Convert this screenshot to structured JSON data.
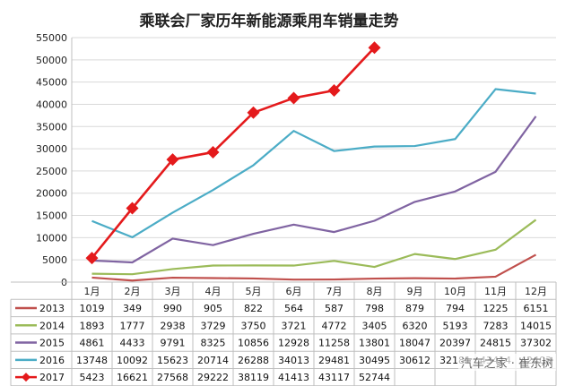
{
  "watermark": "汽车之家 · 崔东树",
  "chart_data": {
    "type": "line",
    "title": "乘联会厂家历年新能源乘用车销量走势",
    "categories": [
      "1月",
      "2月",
      "3月",
      "4月",
      "5月",
      "6月",
      "7月",
      "8月",
      "9月",
      "10月",
      "11月",
      "12月"
    ],
    "ylim": [
      0,
      55000
    ],
    "yticks": [
      0,
      5000,
      10000,
      15000,
      20000,
      25000,
      30000,
      35000,
      40000,
      45000,
      50000,
      55000
    ],
    "grid": true,
    "legend": "data table below plot",
    "series": [
      {
        "name": "2013",
        "color": "#c0504d",
        "marker": "none",
        "values": [
          1019,
          349,
          990,
          905,
          822,
          564,
          587,
          798,
          879,
          794,
          1225,
          6151
        ]
      },
      {
        "name": "2014",
        "color": "#9bbb59",
        "marker": "none",
        "values": [
          1893,
          1777,
          2938,
          3729,
          3750,
          3721,
          4772,
          3405,
          6320,
          5193,
          7283,
          14015
        ]
      },
      {
        "name": "2015",
        "color": "#8064a2",
        "marker": "none",
        "values": [
          4861,
          4433,
          9791,
          8325,
          10856,
          12928,
          11258,
          13801,
          18047,
          20397,
          24815,
          37302
        ]
      },
      {
        "name": "2016",
        "color": "#4bacc6",
        "marker": "none",
        "values": [
          13748,
          10092,
          15623,
          20714,
          26288,
          34013,
          29481,
          30495,
          30612,
          32181,
          43414,
          42403
        ]
      },
      {
        "name": "2017",
        "color": "#e41a1c",
        "marker": "diamond",
        "values": [
          5423,
          16621,
          27568,
          29222,
          38119,
          41413,
          43117,
          52744,
          null,
          null,
          null,
          null
        ]
      }
    ]
  }
}
